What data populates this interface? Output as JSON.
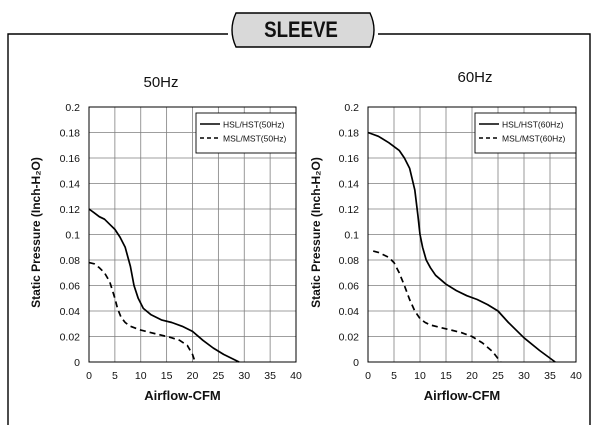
{
  "header": {
    "title": "SLEEVE"
  },
  "colors": {
    "frame_fill": "#d9d9d9",
    "line": "#000000",
    "grid": "#7f7f7f",
    "background": "#ffffff"
  },
  "chart_data": [
    {
      "type": "line",
      "title": "50Hz",
      "xlabel": "Airflow-CFM",
      "ylabel": "Static Pressure (Inch-H₂O)",
      "xlim": [
        0,
        40
      ],
      "ylim": [
        0,
        0.2
      ],
      "x_ticks": [
        "0",
        "5",
        "10",
        "15",
        "20",
        "25",
        "30",
        "35",
        "40"
      ],
      "y_ticks": [
        "0",
        "0.02",
        "0.04",
        "0.06",
        "0.08",
        "0.1",
        "0.12",
        "0.14",
        "0.16",
        "0.18",
        "0.2"
      ],
      "grid": true,
      "legend": "top-right",
      "series": [
        {
          "name": "HSL/HST(50Hz)",
          "style": "solid",
          "points": [
            [
              0,
              0.12
            ],
            [
              1,
              0.117
            ],
            [
              2,
              0.114
            ],
            [
              3,
              0.112
            ],
            [
              4,
              0.108
            ],
            [
              5,
              0.104
            ],
            [
              6,
              0.098
            ],
            [
              7,
              0.09
            ],
            [
              8,
              0.075
            ],
            [
              8.7,
              0.06
            ],
            [
              9.5,
              0.05
            ],
            [
              10.5,
              0.042
            ],
            [
              12,
              0.037
            ],
            [
              14,
              0.033
            ],
            [
              16,
              0.031
            ],
            [
              18,
              0.028
            ],
            [
              20,
              0.024
            ],
            [
              22,
              0.017
            ],
            [
              24,
              0.011
            ],
            [
              26,
              0.006
            ],
            [
              29,
              0.0
            ]
          ]
        },
        {
          "name": "MSL/MST(50Hz)",
          "style": "dashed",
          "points": [
            [
              0,
              0.078
            ],
            [
              1,
              0.077
            ],
            [
              2,
              0.074
            ],
            [
              3,
              0.07
            ],
            [
              4,
              0.063
            ],
            [
              5,
              0.05
            ],
            [
              5.5,
              0.042
            ],
            [
              6.2,
              0.035
            ],
            [
              7,
              0.031
            ],
            [
              8,
              0.028
            ],
            [
              10,
              0.025
            ],
            [
              12,
              0.023
            ],
            [
              14,
              0.021
            ],
            [
              16,
              0.019
            ],
            [
              17.5,
              0.017
            ],
            [
              19,
              0.013
            ],
            [
              20,
              0.006
            ],
            [
              20.5,
              0.0
            ]
          ]
        }
      ]
    },
    {
      "type": "line",
      "title": "60Hz",
      "xlabel": "Airflow-CFM",
      "ylabel": "Static Pressure (Inch-H₂O)",
      "xlim": [
        0,
        40
      ],
      "ylim": [
        0,
        0.2
      ],
      "x_ticks": [
        "0",
        "5",
        "10",
        "15",
        "20",
        "25",
        "30",
        "35",
        "40"
      ],
      "y_ticks": [
        "0",
        "0.02",
        "0.04",
        "0.06",
        "0.08",
        "0.1",
        "0.12",
        "0.14",
        "0.16",
        "0.18",
        "0.2"
      ],
      "grid": true,
      "legend": "top-right",
      "series": [
        {
          "name": "HSL/HST(60Hz)",
          "style": "solid",
          "points": [
            [
              0,
              0.18
            ],
            [
              2,
              0.177
            ],
            [
              4,
              0.172
            ],
            [
              6,
              0.166
            ],
            [
              7,
              0.16
            ],
            [
              8,
              0.152
            ],
            [
              9,
              0.135
            ],
            [
              9.6,
              0.115
            ],
            [
              10,
              0.1
            ],
            [
              10.5,
              0.09
            ],
            [
              11.2,
              0.08
            ],
            [
              12,
              0.074
            ],
            [
              13,
              0.068
            ],
            [
              15,
              0.061
            ],
            [
              17,
              0.056
            ],
            [
              19,
              0.052
            ],
            [
              21,
              0.049
            ],
            [
              23,
              0.045
            ],
            [
              25,
              0.04
            ],
            [
              27,
              0.031
            ],
            [
              30,
              0.019
            ],
            [
              33,
              0.009
            ],
            [
              36,
              0.0
            ]
          ]
        },
        {
          "name": "MSL/MST(60Hz)",
          "style": "dashed",
          "points": [
            [
              1,
              0.087
            ],
            [
              2,
              0.086
            ],
            [
              3,
              0.084
            ],
            [
              4,
              0.082
            ],
            [
              5,
              0.078
            ],
            [
              6,
              0.07
            ],
            [
              7,
              0.06
            ],
            [
              8,
              0.049
            ],
            [
              9,
              0.04
            ],
            [
              10,
              0.034
            ],
            [
              11,
              0.031
            ],
            [
              12,
              0.029
            ],
            [
              14,
              0.027
            ],
            [
              16,
              0.025
            ],
            [
              18,
              0.023
            ],
            [
              20,
              0.02
            ],
            [
              22,
              0.015
            ],
            [
              24,
              0.008
            ],
            [
              25.5,
              0.0
            ]
          ]
        }
      ]
    }
  ]
}
